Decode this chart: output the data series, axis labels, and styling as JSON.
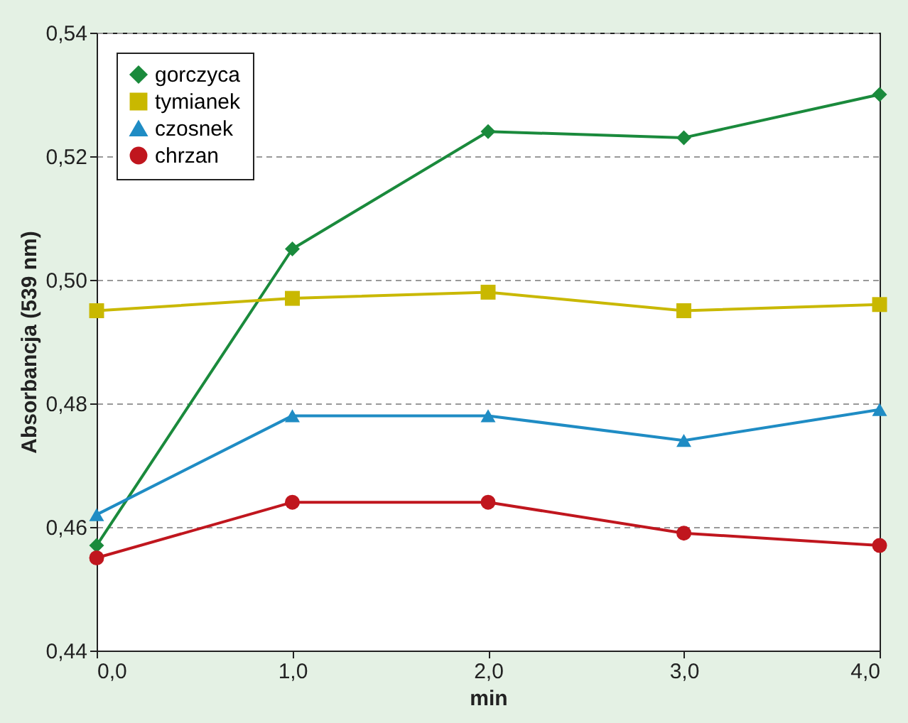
{
  "chart_data": {
    "type": "line",
    "xlabel": "min",
    "ylabel": "Absorbancja (539 nm)",
    "x": [
      0,
      1,
      2,
      3,
      4
    ],
    "xlim": [
      0,
      4
    ],
    "xticks": [
      {
        "value": 0,
        "label": "0,0"
      },
      {
        "value": 1,
        "label": "1,0"
      },
      {
        "value": 2,
        "label": "2,0"
      },
      {
        "value": 3,
        "label": "3,0"
      },
      {
        "value": 4,
        "label": "4,0"
      }
    ],
    "ylim": [
      0.44,
      0.54
    ],
    "yticks": [
      {
        "value": 0.44,
        "label": "0,44"
      },
      {
        "value": 0.46,
        "label": "0,46"
      },
      {
        "value": 0.48,
        "label": "0,48"
      },
      {
        "value": 0.5,
        "label": "0,50"
      },
      {
        "value": 0.52,
        "label": "0,52"
      },
      {
        "value": 0.54,
        "label": "0,54"
      }
    ],
    "grid": "y",
    "legend": "top left",
    "line_style": "solid",
    "series": [
      {
        "name": "gorczyca",
        "color": "#1a8a3c",
        "marker": "diamond",
        "values": [
          0.457,
          0.505,
          0.524,
          0.523,
          0.53
        ]
      },
      {
        "name": "tymianek",
        "color": "#c9b800",
        "marker": "square",
        "values": [
          0.495,
          0.497,
          0.498,
          0.495,
          0.496
        ]
      },
      {
        "name": "czosnek",
        "color": "#1f8cc4",
        "marker": "triangle",
        "values": [
          0.462,
          0.478,
          0.478,
          0.474,
          0.479
        ]
      },
      {
        "name": "chrzan",
        "color": "#c0161e",
        "marker": "circle",
        "values": [
          0.455,
          0.464,
          0.464,
          0.459,
          0.457
        ]
      }
    ]
  }
}
